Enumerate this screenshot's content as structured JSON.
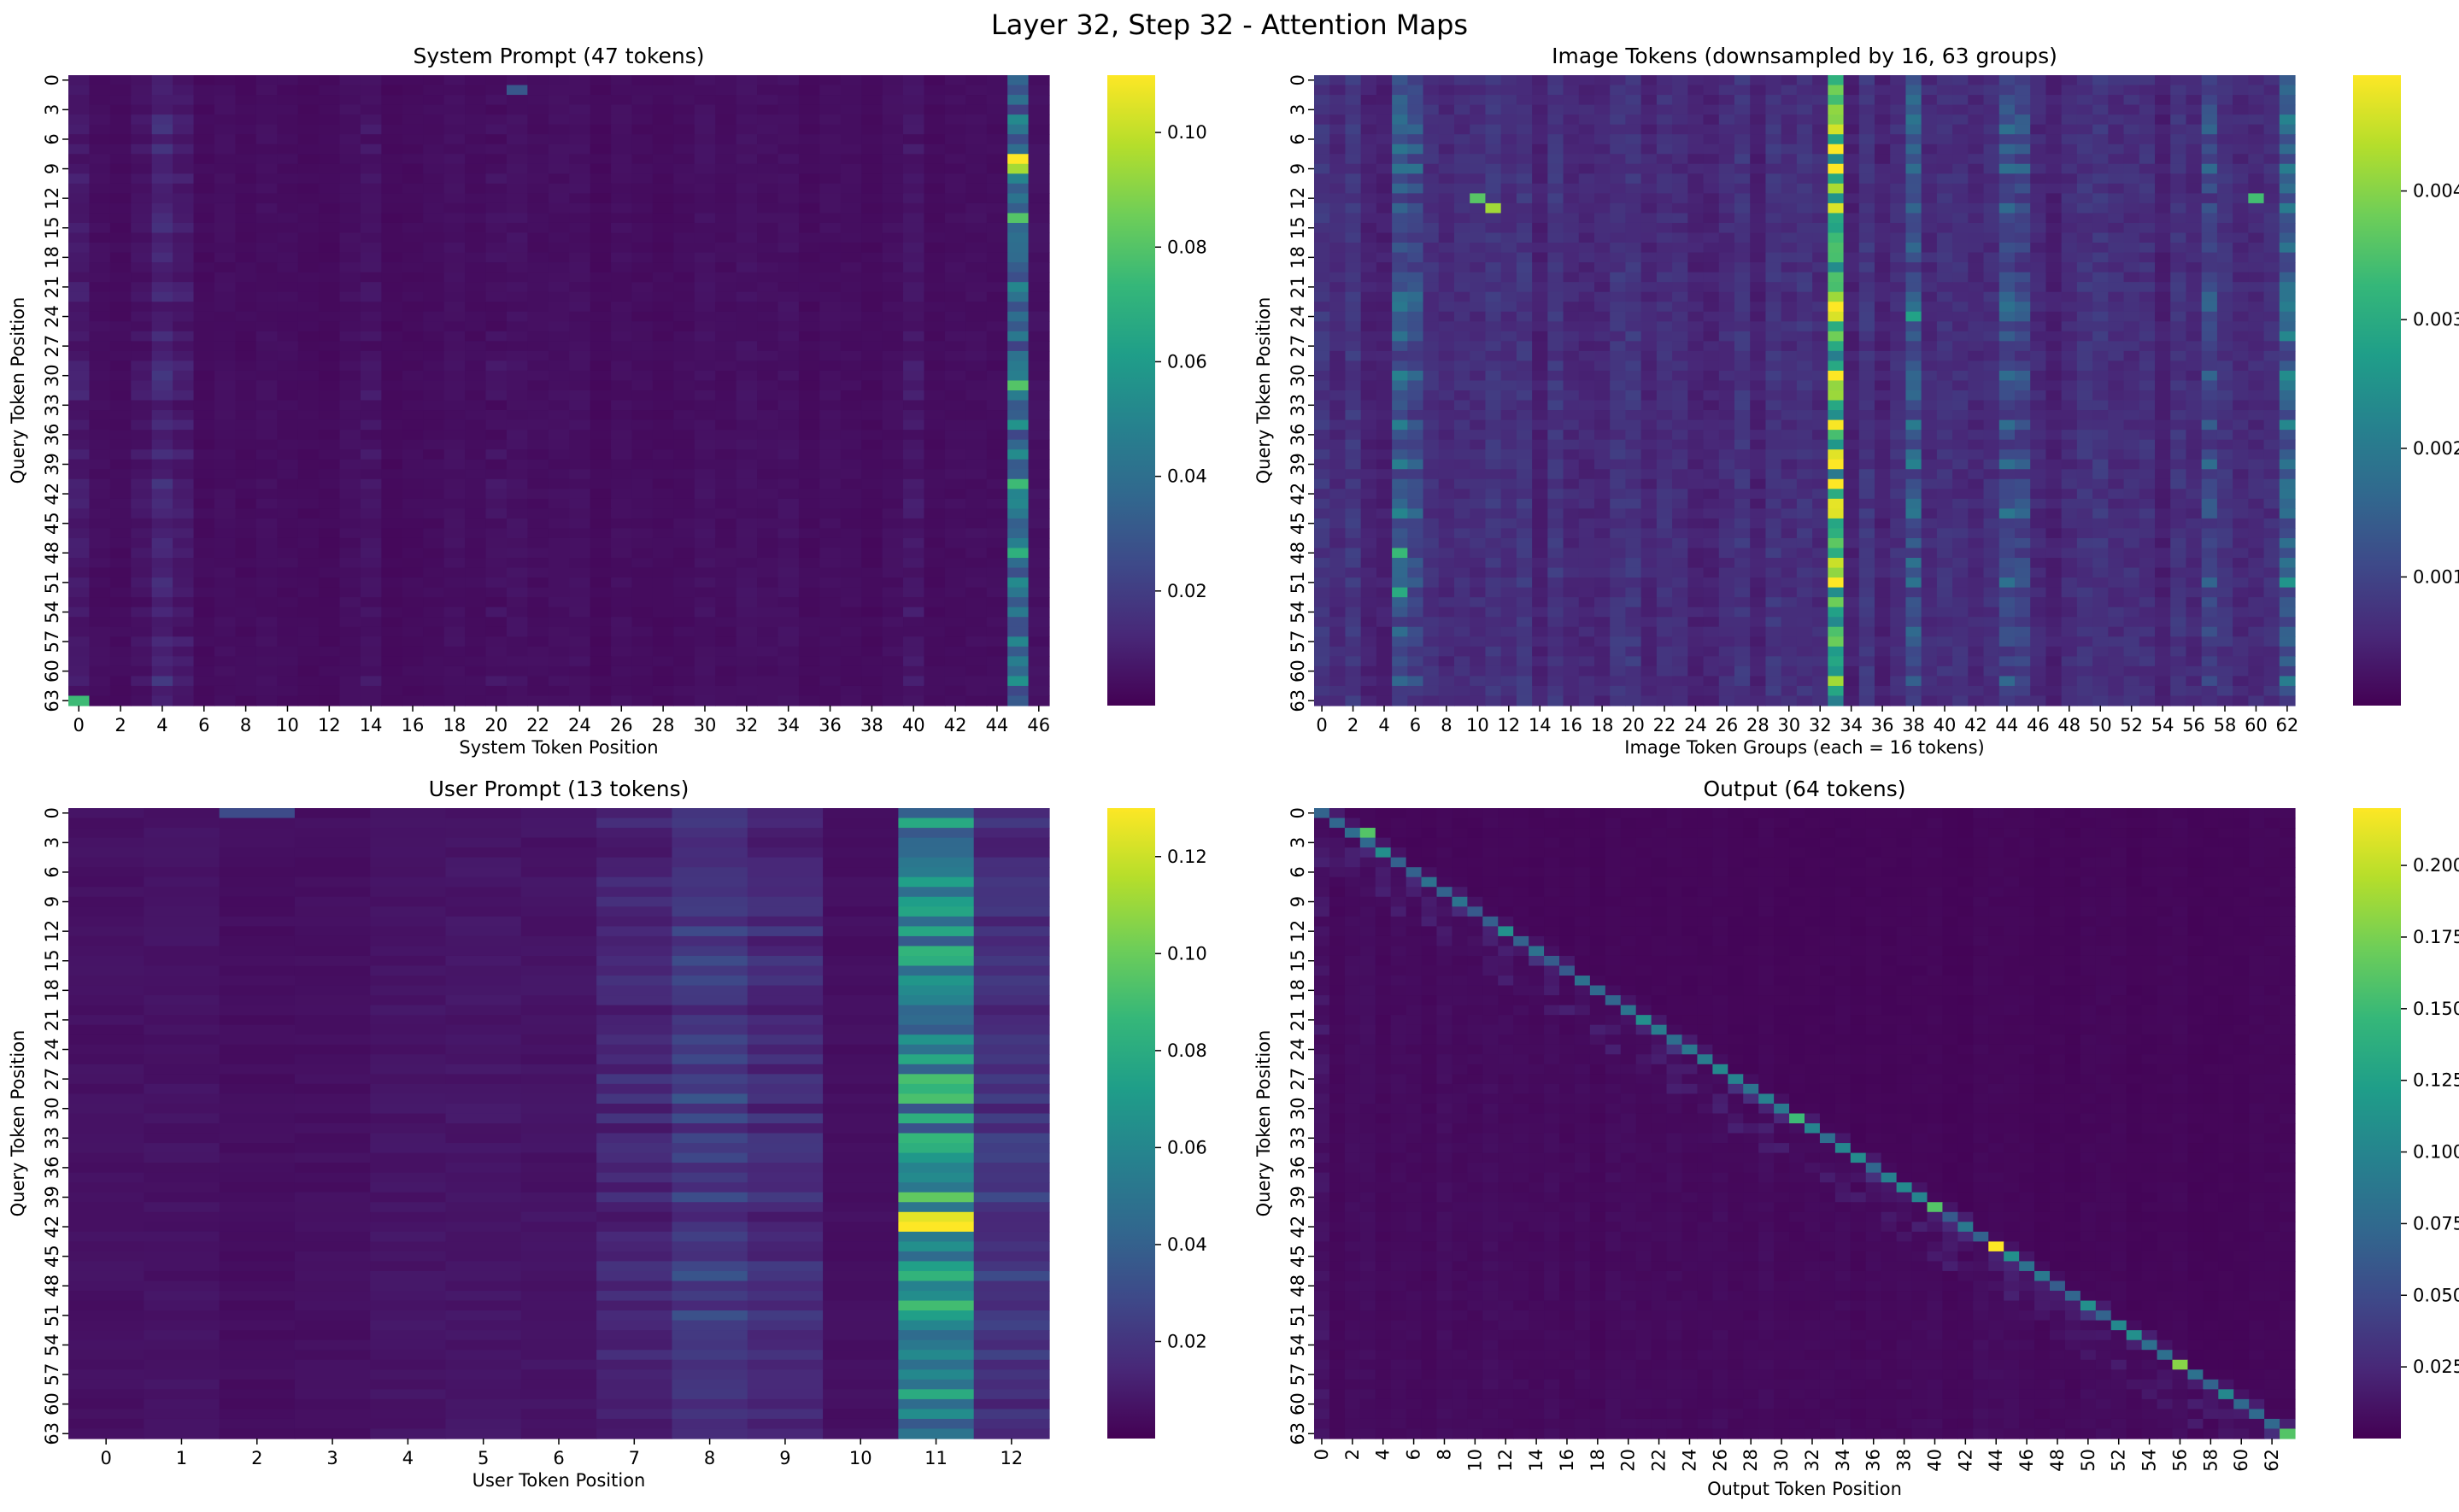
{
  "figure": {
    "suptitle": "Layer 32, Step 32 - Attention Maps"
  },
  "colormap": {
    "name": "viridis",
    "stops": [
      "#440154",
      "#482878",
      "#3e4989",
      "#31688e",
      "#26828e",
      "#1f9e89",
      "#35b779",
      "#6ece58",
      "#b5de2b",
      "#fde725"
    ]
  },
  "chart_data": [
    {
      "type": "heatmap",
      "id": "system",
      "title": "System Prompt (47 tokens)",
      "xlabel": "System Token Position",
      "ylabel": "Query Token Position",
      "rows": 64,
      "cols": 47,
      "xtick_step": 2,
      "ytick_step": 3,
      "xtick_rotate": false,
      "vmin": 0.0,
      "vmax": 0.11,
      "colorbar_ticks": [
        "0.02",
        "0.04",
        "0.06",
        "0.08",
        "0.10"
      ],
      "base": 0.004,
      "col_weights": {
        "0": 0.008,
        "3": 0.006,
        "4": 0.012,
        "5": 0.008,
        "14": 0.006,
        "20": 0.005,
        "40": 0.007,
        "45": 0.04
      },
      "highlights": [
        {
          "row": 8,
          "col": 45,
          "value": 0.11
        },
        {
          "row": 9,
          "col": 45,
          "value": 0.095
        },
        {
          "row": 14,
          "col": 45,
          "value": 0.08
        },
        {
          "row": 31,
          "col": 45,
          "value": 0.08
        },
        {
          "row": 41,
          "col": 45,
          "value": 0.075
        },
        {
          "row": 48,
          "col": 45,
          "value": 0.07
        },
        {
          "row": 63,
          "col": 0,
          "value": 0.075
        },
        {
          "row": 1,
          "col": 21,
          "value": 0.03
        }
      ]
    },
    {
      "type": "heatmap",
      "id": "image",
      "title": "Image Tokens (downsampled by 16, 63 groups)",
      "xlabel": "Image Token Groups (each = 16 tokens)",
      "ylabel": "Query Token Position",
      "rows": 64,
      "cols": 63,
      "xtick_step": 2,
      "ytick_step": 3,
      "xtick_rotate": false,
      "vmin": 0.0,
      "vmax": 0.0049,
      "colorbar_ticks": [
        "0.001",
        "0.002",
        "0.003",
        "0.004"
      ],
      "base": 0.0006,
      "col_weights": {
        "5": 0.0014,
        "6": 0.0012,
        "33": 0.0036,
        "38": 0.0014,
        "44": 0.0012,
        "45": 0.0011,
        "57": 0.0011,
        "62": 0.0016
      },
      "highlights": [
        {
          "row": 7,
          "col": 33,
          "value": 0.0049
        },
        {
          "row": 41,
          "col": 33,
          "value": 0.0049
        },
        {
          "row": 13,
          "col": 11,
          "value": 0.0042
        },
        {
          "row": 12,
          "col": 10,
          "value": 0.0036
        },
        {
          "row": 12,
          "col": 60,
          "value": 0.0034
        },
        {
          "row": 48,
          "col": 5,
          "value": 0.0033
        },
        {
          "row": 52,
          "col": 5,
          "value": 0.003
        },
        {
          "row": 24,
          "col": 38,
          "value": 0.0028
        }
      ]
    },
    {
      "type": "heatmap",
      "id": "user",
      "title": "User Prompt (13 tokens)",
      "xlabel": "User Token Position",
      "ylabel": "Query Token Position",
      "rows": 64,
      "cols": 13,
      "xtick_step": 1,
      "ytick_step": 3,
      "xtick_rotate": false,
      "vmin": 0.0,
      "vmax": 0.13,
      "colorbar_ticks": [
        "0.02",
        "0.04",
        "0.06",
        "0.08",
        "0.10",
        "0.12"
      ],
      "base": 0.006,
      "col_weights": {
        "7": 0.014,
        "8": 0.022,
        "9": 0.016,
        "11": 0.06,
        "12": 0.02
      },
      "highlights": [
        {
          "row": 42,
          "col": 11,
          "value": 0.13
        },
        {
          "row": 41,
          "col": 11,
          "value": 0.125
        },
        {
          "row": 14,
          "col": 11,
          "value": 0.085
        },
        {
          "row": 50,
          "col": 11,
          "value": 0.09
        },
        {
          "row": 59,
          "col": 11,
          "value": 0.08
        },
        {
          "row": 28,
          "col": 11,
          "value": 0.085
        },
        {
          "row": 0,
          "col": 2,
          "value": 0.03
        }
      ]
    },
    {
      "type": "heatmap",
      "id": "output",
      "title": "Output (64 tokens)",
      "xlabel": "Output Token Position",
      "ylabel": "Query Token Position",
      "rows": 64,
      "cols": 64,
      "xtick_step": 2,
      "ytick_step": 3,
      "xtick_rotate": true,
      "vmin": 0.0,
      "vmax": 0.22,
      "colorbar_ticks": [
        "0.025",
        "0.050",
        "0.075",
        "0.100",
        "0.125",
        "0.150",
        "0.175",
        "0.200"
      ],
      "base": 0.006,
      "diagonal": 0.1,
      "col_weights": {
        "0": 0.012
      },
      "highlights": [
        {
          "row": 44,
          "col": 44,
          "value": 0.22
        },
        {
          "row": 56,
          "col": 56,
          "value": 0.18
        },
        {
          "row": 40,
          "col": 40,
          "value": 0.16
        },
        {
          "row": 63,
          "col": 63,
          "value": 0.16
        },
        {
          "row": 2,
          "col": 3,
          "value": 0.16
        },
        {
          "row": 12,
          "col": 12,
          "value": 0.11
        },
        {
          "row": 31,
          "col": 31,
          "value": 0.15
        }
      ]
    }
  ]
}
